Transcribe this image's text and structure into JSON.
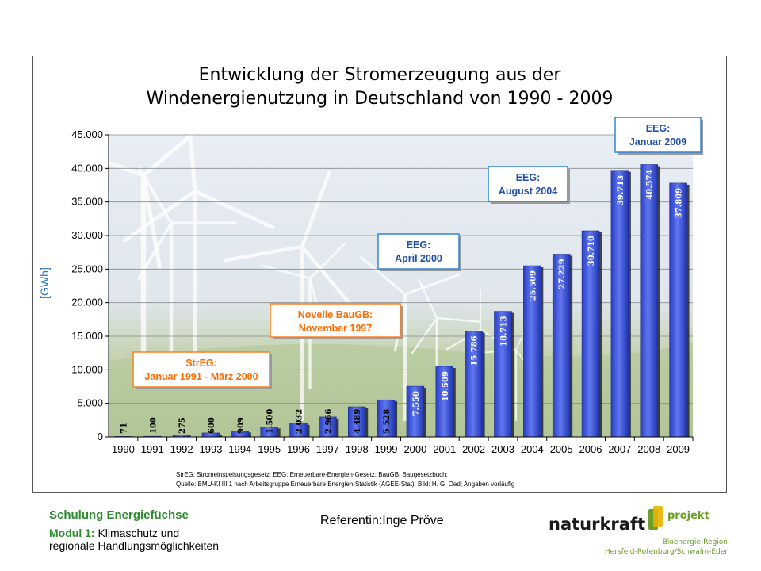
{
  "footer": {
    "course_title": "Schulung Energiefüchse",
    "module_label": "Modul 1:",
    "module_text_1": "Klimaschutz und",
    "module_text_2": "regionale Handlungsmöglichkeiten",
    "referentin": "Referentin:Inge Pröve"
  },
  "logo": {
    "brand": "naturkraft",
    "projekt": "projekt",
    "line1": "Bioenergie-Region",
    "line2": "Hersfeld-Rotenburg/Schwalm-Eder"
  },
  "colors": {
    "bar": "#3a53d6",
    "bar_light": "#9fb0ff",
    "callout_blue_border": "#2f86d6",
    "callout_blue_text": "#1f4fa8",
    "callout_orange_border": "#ff7f1a",
    "callout_orange_text": "#ff6a00",
    "ylabel": "#2f73c2",
    "logo_green": "#6b9e2a"
  },
  "chart_data": {
    "type": "bar",
    "title_line1": "Entwicklung der Stromerzeugung aus der",
    "title_line2": "Windenergienutzung in Deutschland von 1990 - 2009",
    "ylabel": "[GWh]",
    "ylim": [
      0,
      45000
    ],
    "yticks": [
      0,
      5000,
      10000,
      15000,
      20000,
      25000,
      30000,
      35000,
      40000,
      45000
    ],
    "ytick_labels": [
      "0",
      "5.000",
      "10.000",
      "15.000",
      "20.000",
      "25.000",
      "30.000",
      "35.000",
      "40.000",
      "45.000"
    ],
    "categories": [
      "1990",
      "1991",
      "1992",
      "1993",
      "1994",
      "1995",
      "1996",
      "1997",
      "1998",
      "1999",
      "2000",
      "2001",
      "2002",
      "2003",
      "2004",
      "2005",
      "2006",
      "2007",
      "2008",
      "2009"
    ],
    "values": [
      71,
      100,
      275,
      600,
      909,
      1500,
      2032,
      2966,
      4489,
      5528,
      7550,
      10509,
      15786,
      18713,
      25509,
      27229,
      30710,
      39713,
      40574,
      37809
    ],
    "value_labels": [
      "71",
      "100",
      "275",
      "600",
      "909",
      "1.500",
      "2.032",
      "2.966",
      "4.489",
      "5.528",
      "7.550",
      "10.509",
      "15.786",
      "18.713",
      "25.509",
      "27.229",
      "30.710",
      "39.713",
      "40.574",
      "37.809"
    ],
    "grid": true,
    "annotations": [
      {
        "line1": "StrEG:",
        "line2": "Januar 1991 - März 2000",
        "style": "orange"
      },
      {
        "line1": "Novelle BauGB:",
        "line2": "November 1997",
        "style": "orange"
      },
      {
        "line1": "EEG:",
        "line2": "April 2000",
        "style": "blue"
      },
      {
        "line1": "EEG:",
        "line2": "August 2004",
        "style": "blue"
      },
      {
        "line1": "EEG:",
        "line2": "Januar 2009",
        "style": "blue"
      }
    ],
    "footnote_1": "StrEG: Stromeinspeisungsgesetz; EEG: Erneuerbare-Energien-Gesetz; BauGB: Baugesetzbuch;",
    "footnote_2": "Quelle: BMU-KI III 1 nach Arbeitsgruppe Erneuerbare Energien-Statistik (AGEE-Stat); Bild: H. G. Oed; Angaben vorläufig"
  }
}
